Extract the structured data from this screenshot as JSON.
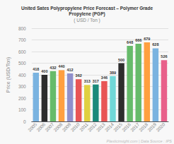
{
  "chart_data": {
    "type": "bar",
    "title": "United Sates Polypropylene Price Forecast – Polymer Grade\nPropylene (PGP)",
    "subtitle": "( USD / Ton )",
    "ylabel": "Price (USD/Ton)",
    "annotations": [
      "Plasticinsight.com | Data Source : IPS"
    ],
    "categories": [
      "2005",
      "2006",
      "2007",
      "2008",
      "2009",
      "2010",
      "2011",
      "2012",
      "2013",
      "2014",
      "2015",
      "2016",
      "2017",
      "2018",
      "2019",
      "2020"
    ],
    "values": [
      418,
      400,
      432,
      440,
      412,
      362,
      313,
      317,
      346,
      389,
      500,
      648,
      666,
      679,
      628,
      526
    ],
    "colors": [
      "#7ab3e0",
      "#2d2d2d",
      "#66bb6a",
      "#ffa040",
      "#9090cc",
      "#e85555",
      "#e0d040",
      "#1a8a7a",
      "#e85555",
      "#70d8d8",
      "#2d2d2d",
      "#66bb6a",
      "#66bb6a",
      "#ffa040",
      "#7ab3e0",
      "#e8608a"
    ],
    "ylim": [
      0,
      800
    ],
    "yticks": [
      0,
      100,
      200,
      300,
      400,
      500,
      600,
      700,
      800
    ],
    "grid": true,
    "data_labels": true
  }
}
